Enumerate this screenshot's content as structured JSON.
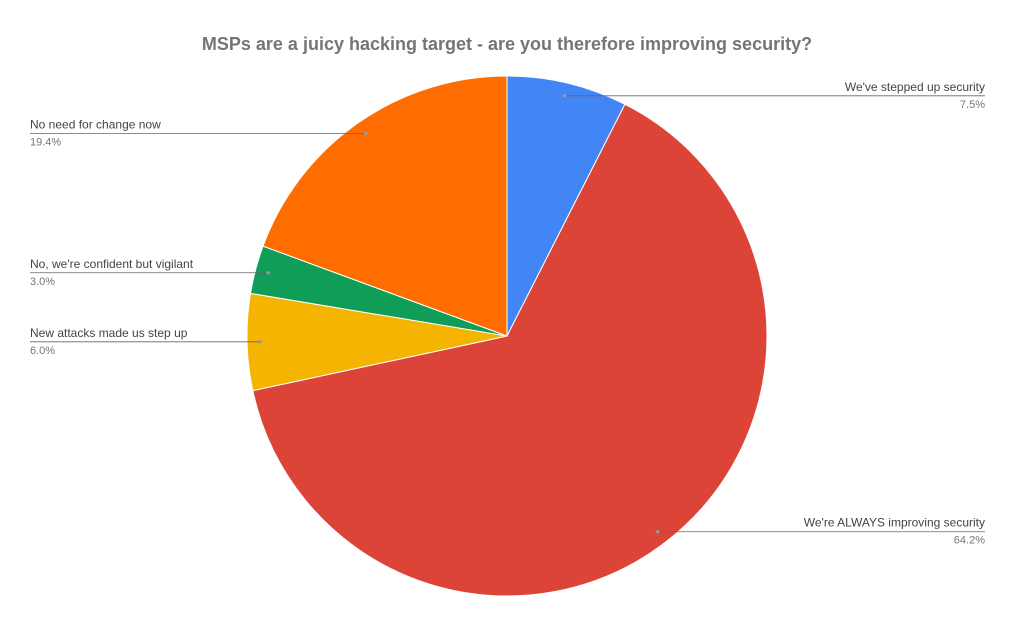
{
  "chart_data": {
    "type": "pie",
    "title": "MSPs are a juicy hacking target - are you therefore improving security?",
    "categories": [
      "We've stepped up security",
      "We're ALWAYS improving security",
      "New attacks made us step up",
      "No, we're confident but vigilant",
      "No need for change now"
    ],
    "values": [
      7.5,
      64.2,
      6.0,
      3.0,
      19.4
    ],
    "value_labels": [
      "7.5%",
      "64.2%",
      "6.0%",
      "3.0%",
      "19.4%"
    ],
    "colors": [
      "#4285f4",
      "#db4437",
      "#f4b400",
      "#0f9d58",
      "#ff6d00"
    ]
  }
}
